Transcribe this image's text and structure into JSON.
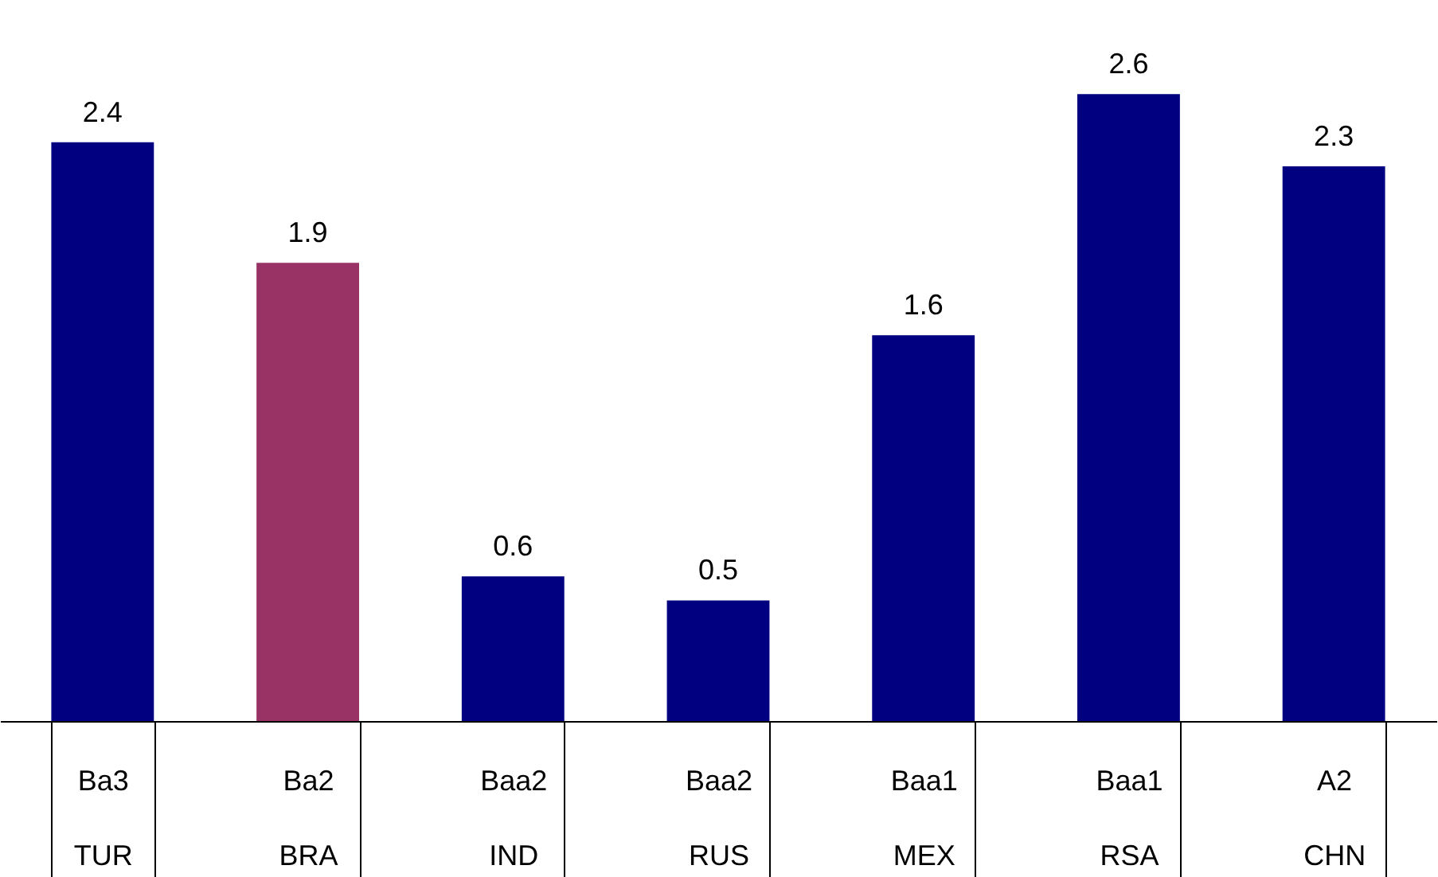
{
  "chart_data": {
    "type": "bar",
    "categories": [
      "Ba3\nTUR",
      "Ba2\nBRA",
      "Baa2\nIND",
      "Baa2\nRUS",
      "Baa1\nMEX",
      "Baa1\nRSA",
      "A2\nCHN"
    ],
    "values": [
      2.4,
      1.9,
      0.6,
      0.5,
      1.6,
      2.6,
      2.3
    ],
    "colors": [
      "#000080",
      "#993366",
      "#000080",
      "#000080",
      "#000080",
      "#000080",
      "#000080"
    ],
    "data_labels": true,
    "grid": false,
    "tick_labels": "x"
  }
}
